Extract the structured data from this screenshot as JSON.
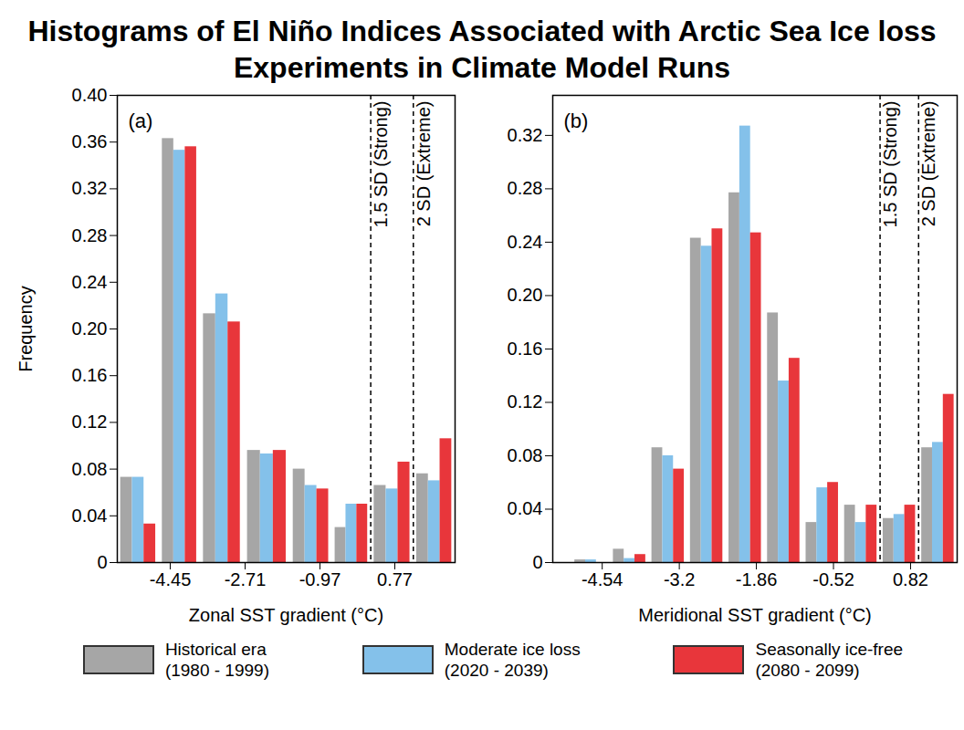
{
  "title": "Histograms of El Niño Indices Associated with Arctic Sea Ice loss Experiments in Climate Model Runs",
  "chart_data": [
    {
      "type": "histogram",
      "panel_label": "(a)",
      "xlabel": "Zonal SST gradient (°C)",
      "ylabel": "Frequency",
      "bins": [
        -5.68,
        -4.71,
        -3.76,
        -2.74,
        -1.67,
        -0.69,
        0.21,
        1.2,
        2.17
      ],
      "series": [
        {
          "name": "Historical era (1980 - 1999)",
          "color": "#a6a6a6",
          "values": [
            0.073,
            0.363,
            0.213,
            0.096,
            0.08,
            0.03,
            0.066,
            0.076
          ]
        },
        {
          "name": "Moderate ice loss (2020 - 2039)",
          "color": "#84c1ea",
          "values": [
            0.073,
            0.353,
            0.23,
            0.093,
            0.066,
            0.05,
            0.063,
            0.07
          ]
        },
        {
          "name": "Seasonally ice-free (2080 - 2099)",
          "color": "#e8363b",
          "values": [
            0.033,
            0.356,
            0.206,
            0.096,
            0.063,
            0.05,
            0.086,
            0.106
          ]
        }
      ],
      "xlim": [
        -5.68,
        2.17
      ],
      "xticks": [
        -4.45,
        -2.71,
        -0.97,
        0.77
      ],
      "ylim": [
        0,
        0.4
      ],
      "yticks": [
        0,
        0.04,
        0.08,
        0.12,
        0.16,
        {
          "value": 0.2,
          "label": "0.20"
        },
        0.24,
        0.28,
        0.32,
        0.36,
        {
          "value": 0.4,
          "label": "0.40"
        }
      ],
      "annotations": [
        {
          "x": 0.21,
          "label": "1.5 SD (Strong)"
        },
        {
          "x": 1.2,
          "label": "2 SD (Extreme)"
        }
      ],
      "legend": "bottom"
    },
    {
      "type": "histogram",
      "panel_label": "(b)",
      "xlabel": "Meridional SST gradient (°C)",
      "bins": [
        -5.07,
        -4.4,
        -3.73,
        -3.06,
        -2.39,
        -1.72,
        -1.05,
        -0.38,
        0.29,
        0.96,
        1.63
      ],
      "series": [
        {
          "name": "Historical era (1980 - 1999)",
          "color": "#a6a6a6",
          "values": [
            0.002,
            0.01,
            0.086,
            0.243,
            0.277,
            0.187,
            0.03,
            0.043,
            0.033,
            0.086
          ]
        },
        {
          "name": "Moderate ice loss (2020 - 2039)",
          "color": "#84c1ea",
          "values": [
            0.002,
            0.003,
            0.08,
            0.237,
            0.327,
            0.136,
            0.056,
            0.03,
            0.036,
            0.09
          ]
        },
        {
          "name": "Seasonally ice-free (2080 - 2099)",
          "color": "#e8363b",
          "values": [
            0,
            0.006,
            0.07,
            0.25,
            0.247,
            0.153,
            0.06,
            0.043,
            0.043,
            0.126
          ]
        }
      ],
      "xlim": [
        -5.4,
        1.63
      ],
      "xticks": [
        -4.54,
        -3.2,
        -1.86,
        -0.52,
        0.82
      ],
      "ylim": [
        0,
        0.35
      ],
      "yticks": [
        0,
        0.04,
        0.08,
        0.12,
        0.16,
        {
          "value": 0.2,
          "label": "0.20"
        },
        0.24,
        0.28,
        0.32
      ],
      "annotations": [
        {
          "x": 0.29,
          "label": "1.5 SD (Strong)"
        },
        {
          "x": 0.96,
          "label": "2 SD (Extreme)"
        }
      ]
    }
  ]
}
